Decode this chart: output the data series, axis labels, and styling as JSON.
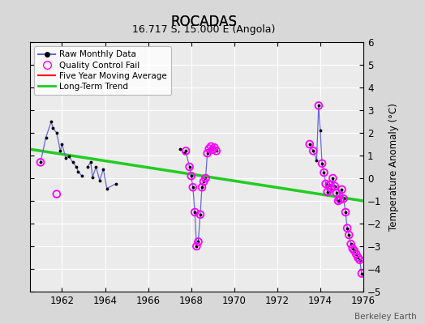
{
  "title": "ROCADAS",
  "subtitle": "16.717 S, 15.000 E (Angola)",
  "ylabel": "Temperature Anomaly (°C)",
  "credit": "Berkeley Earth",
  "xlim": [
    1960.5,
    1976.0
  ],
  "ylim": [
    -5,
    6
  ],
  "yticks": [
    -5,
    -4,
    -3,
    -2,
    -1,
    0,
    1,
    2,
    3,
    4,
    5,
    6
  ],
  "xticks": [
    1962,
    1964,
    1966,
    1968,
    1970,
    1972,
    1974,
    1976
  ],
  "bg_color": "#d8d8d8",
  "plot_bg_color": "#ebebeb",
  "raw_segments": [
    {
      "x": [
        1961.0,
        1961.25,
        1961.5,
        1961.58,
        1961.75,
        1961.92,
        1962.0,
        1962.17,
        1962.33,
        1962.5,
        1962.67,
        1962.75,
        1962.92
      ],
      "y": [
        0.7,
        1.8,
        2.5,
        2.2,
        2.0,
        1.2,
        1.5,
        0.9,
        0.95,
        0.7,
        0.5,
        0.3,
        0.1
      ]
    },
    {
      "x": [
        1963.17,
        1963.33,
        1963.42,
        1963.58,
        1963.75,
        1963.92,
        1964.08,
        1964.5
      ],
      "y": [
        0.5,
        0.7,
        0.05,
        0.5,
        -0.1,
        0.4,
        -0.45,
        -0.25
      ]
    },
    {
      "x": [
        1967.5,
        1967.67,
        1967.75,
        1967.92,
        1968.0,
        1968.08,
        1968.17,
        1968.25,
        1968.33,
        1968.42,
        1968.5,
        1968.58,
        1968.67,
        1968.75,
        1968.83,
        1968.92,
        1969.0,
        1969.08,
        1969.17
      ],
      "y": [
        1.3,
        1.1,
        1.2,
        0.5,
        0.1,
        -0.4,
        -1.5,
        -3.0,
        -2.8,
        -1.6,
        -0.4,
        -0.15,
        0.0,
        1.1,
        1.3,
        1.4,
        1.25,
        1.35,
        1.2
      ]
    },
    {
      "x": [
        1973.5,
        1973.67,
        1973.83,
        1973.92,
        1974.0,
        1974.08,
        1974.17,
        1974.25,
        1974.33,
        1974.42,
        1974.5,
        1974.58,
        1974.67,
        1974.75,
        1974.83,
        1974.92,
        1975.0,
        1975.08,
        1975.17,
        1975.25,
        1975.33,
        1975.42,
        1975.5,
        1975.58,
        1975.67,
        1975.75,
        1975.83,
        1975.92
      ],
      "y": [
        1.5,
        1.2,
        0.8,
        3.2,
        2.1,
        0.65,
        0.25,
        -0.25,
        -0.6,
        -0.3,
        -0.45,
        0.0,
        -0.35,
        -0.65,
        -1.0,
        -0.95,
        -0.5,
        -0.9,
        -1.5,
        -2.2,
        -2.5,
        -2.9,
        -3.1,
        -3.2,
        -3.35,
        -3.5,
        -3.6,
        -4.2
      ]
    }
  ],
  "qc_fail_points": [
    [
      1961.0,
      0.7
    ],
    [
      1961.75,
      -0.7
    ],
    [
      1967.75,
      1.2
    ],
    [
      1967.92,
      0.5
    ],
    [
      1968.0,
      0.1
    ],
    [
      1968.08,
      -0.4
    ],
    [
      1968.17,
      -1.5
    ],
    [
      1968.25,
      -3.0
    ],
    [
      1968.33,
      -2.8
    ],
    [
      1968.42,
      -1.6
    ],
    [
      1968.5,
      -0.4
    ],
    [
      1968.58,
      -0.15
    ],
    [
      1968.67,
      0.0
    ],
    [
      1968.75,
      1.1
    ],
    [
      1968.83,
      1.3
    ],
    [
      1968.92,
      1.4
    ],
    [
      1969.0,
      1.25
    ],
    [
      1969.08,
      1.35
    ],
    [
      1969.17,
      1.2
    ],
    [
      1973.5,
      1.5
    ],
    [
      1973.67,
      1.2
    ],
    [
      1973.92,
      3.2
    ],
    [
      1974.08,
      0.65
    ],
    [
      1974.17,
      0.25
    ],
    [
      1974.25,
      -0.25
    ],
    [
      1974.33,
      -0.6
    ],
    [
      1974.42,
      -0.3
    ],
    [
      1974.5,
      -0.45
    ],
    [
      1974.58,
      0.0
    ],
    [
      1974.67,
      -0.35
    ],
    [
      1974.75,
      -0.65
    ],
    [
      1974.83,
      -1.0
    ],
    [
      1974.92,
      -0.95
    ],
    [
      1975.0,
      -0.5
    ],
    [
      1975.08,
      -0.9
    ],
    [
      1975.17,
      -1.5
    ],
    [
      1975.25,
      -2.2
    ],
    [
      1975.33,
      -2.5
    ],
    [
      1975.42,
      -2.9
    ],
    [
      1975.5,
      -3.1
    ],
    [
      1975.58,
      -3.2
    ],
    [
      1975.67,
      -3.35
    ],
    [
      1975.75,
      -3.5
    ],
    [
      1975.83,
      -3.6
    ],
    [
      1975.92,
      -4.2
    ]
  ],
  "trend_x": [
    1960.5,
    1976.0
  ],
  "trend_y": [
    1.28,
    -1.0
  ],
  "raw_line_color": "#6666dd",
  "qc_color": "magenta",
  "trend_color": "#22cc22",
  "ma_color": "red"
}
